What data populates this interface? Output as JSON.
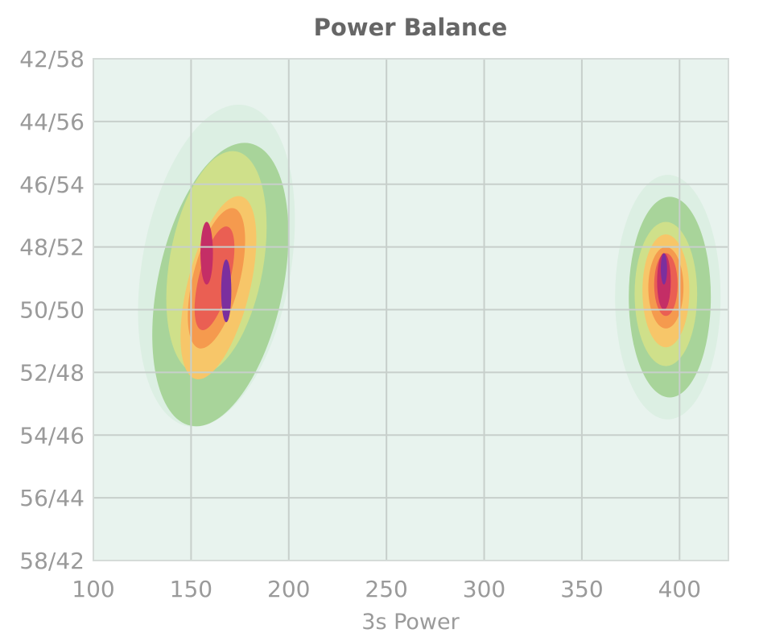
{
  "chart_data": {
    "type": "heatmap",
    "title": "Power Balance",
    "xlabel": "3s Power",
    "ylabel": "",
    "xlim": [
      100,
      425
    ],
    "ylim": [
      42,
      58
    ],
    "x_ticks": [
      {
        "value": 100,
        "label": "100"
      },
      {
        "value": 150,
        "label": "150"
      },
      {
        "value": 200,
        "label": "200"
      },
      {
        "value": 250,
        "label": "250"
      },
      {
        "value": 300,
        "label": "300"
      },
      {
        "value": 350,
        "label": "350"
      },
      {
        "value": 400,
        "label": "400"
      }
    ],
    "y_ticks": [
      {
        "value": 42,
        "label": "42/58"
      },
      {
        "value": 44,
        "label": "44/56"
      },
      {
        "value": 46,
        "label": "46/54"
      },
      {
        "value": 48,
        "label": "48/52"
      },
      {
        "value": 50,
        "label": "50/50"
      },
      {
        "value": 52,
        "label": "52/48"
      },
      {
        "value": 54,
        "label": "54/46"
      },
      {
        "value": 56,
        "label": "56/44"
      },
      {
        "value": 58,
        "label": "58/42"
      }
    ],
    "grid": true,
    "colors": {
      "background": "#e8f3ee",
      "levels": [
        "#dcefe3",
        "#a8d49a",
        "#cfe08a",
        "#f7c669",
        "#f59a4e",
        "#ea5f53",
        "#c42e66",
        "#7b2f9e"
      ]
    },
    "clusters": [
      {
        "levels": [
          {
            "cx": 163,
            "cy": 48.6,
            "rx": 38,
            "ry": 5.2,
            "rot": 10
          },
          {
            "cx": 165,
            "cy": 49.2,
            "rx": 32,
            "ry": 4.6,
            "rot": 12
          },
          {
            "cx": 163,
            "cy": 48.5,
            "rx": 24,
            "ry": 3.6,
            "rot": 10
          },
          {
            "cx": 164,
            "cy": 49.3,
            "rx": 16,
            "ry": 3.0,
            "rot": 14
          },
          {
            "cx": 163,
            "cy": 49.0,
            "rx": 12,
            "ry": 2.3,
            "rot": 14
          },
          {
            "cx": 162,
            "cy": 49.0,
            "rx": 8,
            "ry": 1.7,
            "rot": 14
          },
          {
            "cx": 158,
            "cy": 48.2,
            "rx": 3.2,
            "ry": 1.0,
            "rot": 0
          },
          {
            "cx": 168,
            "cy": 49.4,
            "rx": 2.6,
            "ry": 1.0,
            "rot": 0
          }
        ]
      },
      {
        "levels": [
          {
            "cx": 394,
            "cy": 49.6,
            "rx": 27,
            "ry": 3.9,
            "rot": 0
          },
          {
            "cx": 395,
            "cy": 49.6,
            "rx": 21,
            "ry": 3.2,
            "rot": 0
          },
          {
            "cx": 393,
            "cy": 49.5,
            "rx": 16,
            "ry": 2.3,
            "rot": 0
          },
          {
            "cx": 393,
            "cy": 49.4,
            "rx": 12,
            "ry": 1.8,
            "rot": 0
          },
          {
            "cx": 393,
            "cy": 49.3,
            "rx": 9,
            "ry": 1.3,
            "rot": 0
          },
          {
            "cx": 393,
            "cy": 49.2,
            "rx": 6,
            "ry": 1.0,
            "rot": 0
          },
          {
            "cx": 392,
            "cy": 49.1,
            "rx": 3.5,
            "ry": 0.9,
            "rot": 0
          },
          {
            "cx": 392,
            "cy": 48.7,
            "rx": 1.6,
            "ry": 0.5,
            "rot": 0
          }
        ]
      }
    ]
  }
}
